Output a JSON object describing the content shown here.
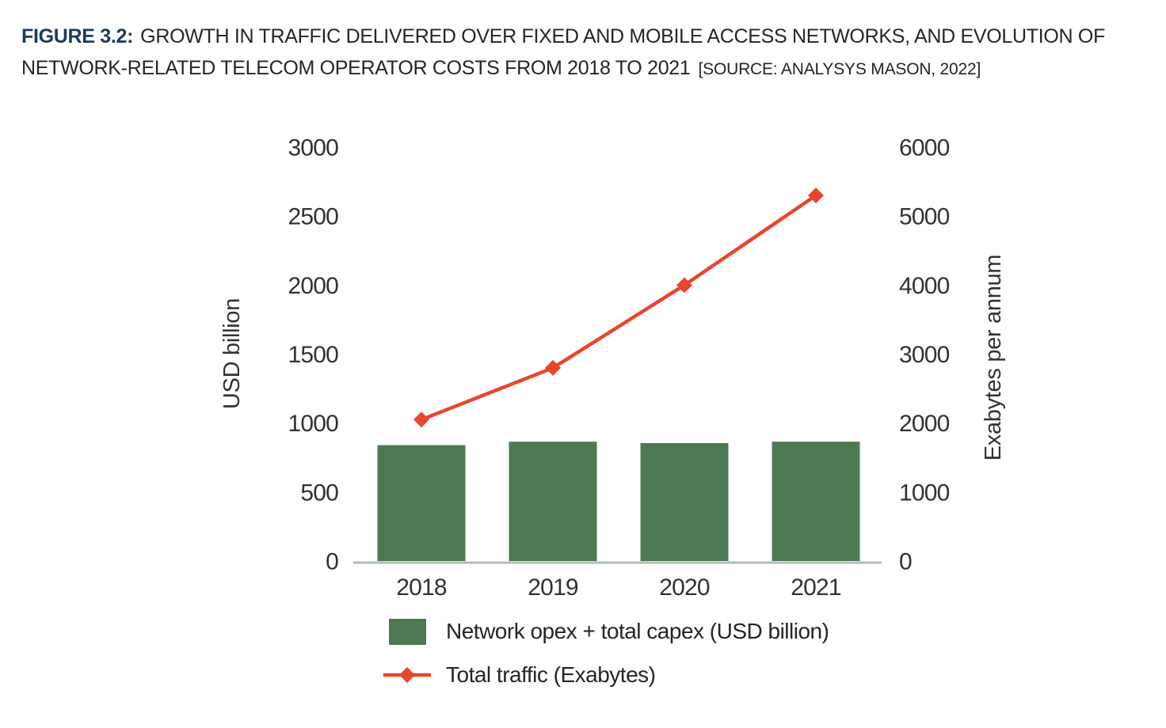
{
  "header": {
    "figure_label": "FIGURE 3.2:",
    "title": "GROWTH IN TRAFFIC DELIVERED OVER FIXED AND MOBILE ACCESS NETWORKS, AND EVOLUTION OF NETWORK-RELATED TELECOM OPERATOR COSTS FROM 2018 TO 2021",
    "source": "[SOURCE: ANALYSYS MASON, 2022]"
  },
  "colors": {
    "figure_label": "#1d3a5a",
    "text": "#21262e",
    "tick_text": "#2e3338",
    "axis_line": "#b4babd",
    "bar_green": "#4d7a52",
    "line_red": "#e8462d",
    "background": "#ffffff"
  },
  "chart_data": {
    "type": "combo",
    "categories": [
      "2018",
      "2019",
      "2020",
      "2021"
    ],
    "series": [
      {
        "name": "Network opex + total capex (USD billion)",
        "type": "bar",
        "axis": "left",
        "color": "#4d7a52",
        "values": [
          840,
          865,
          855,
          865
        ]
      },
      {
        "name": "Total traffic (Exabytes)",
        "type": "line",
        "axis": "right",
        "color": "#e8462d",
        "marker": "diamond",
        "values": [
          2050,
          2800,
          4000,
          5300
        ]
      }
    ],
    "left_axis": {
      "label": "USD billion",
      "ticks": [
        0,
        500,
        1000,
        1500,
        2000,
        2500,
        3000
      ],
      "range": [
        0,
        3000
      ]
    },
    "right_axis": {
      "label": "Exabytes per annum",
      "ticks": [
        0,
        1000,
        2000,
        3000,
        4000,
        5000,
        6000
      ],
      "range": [
        0,
        6000
      ]
    },
    "grid": false,
    "legend_position": "bottom"
  }
}
